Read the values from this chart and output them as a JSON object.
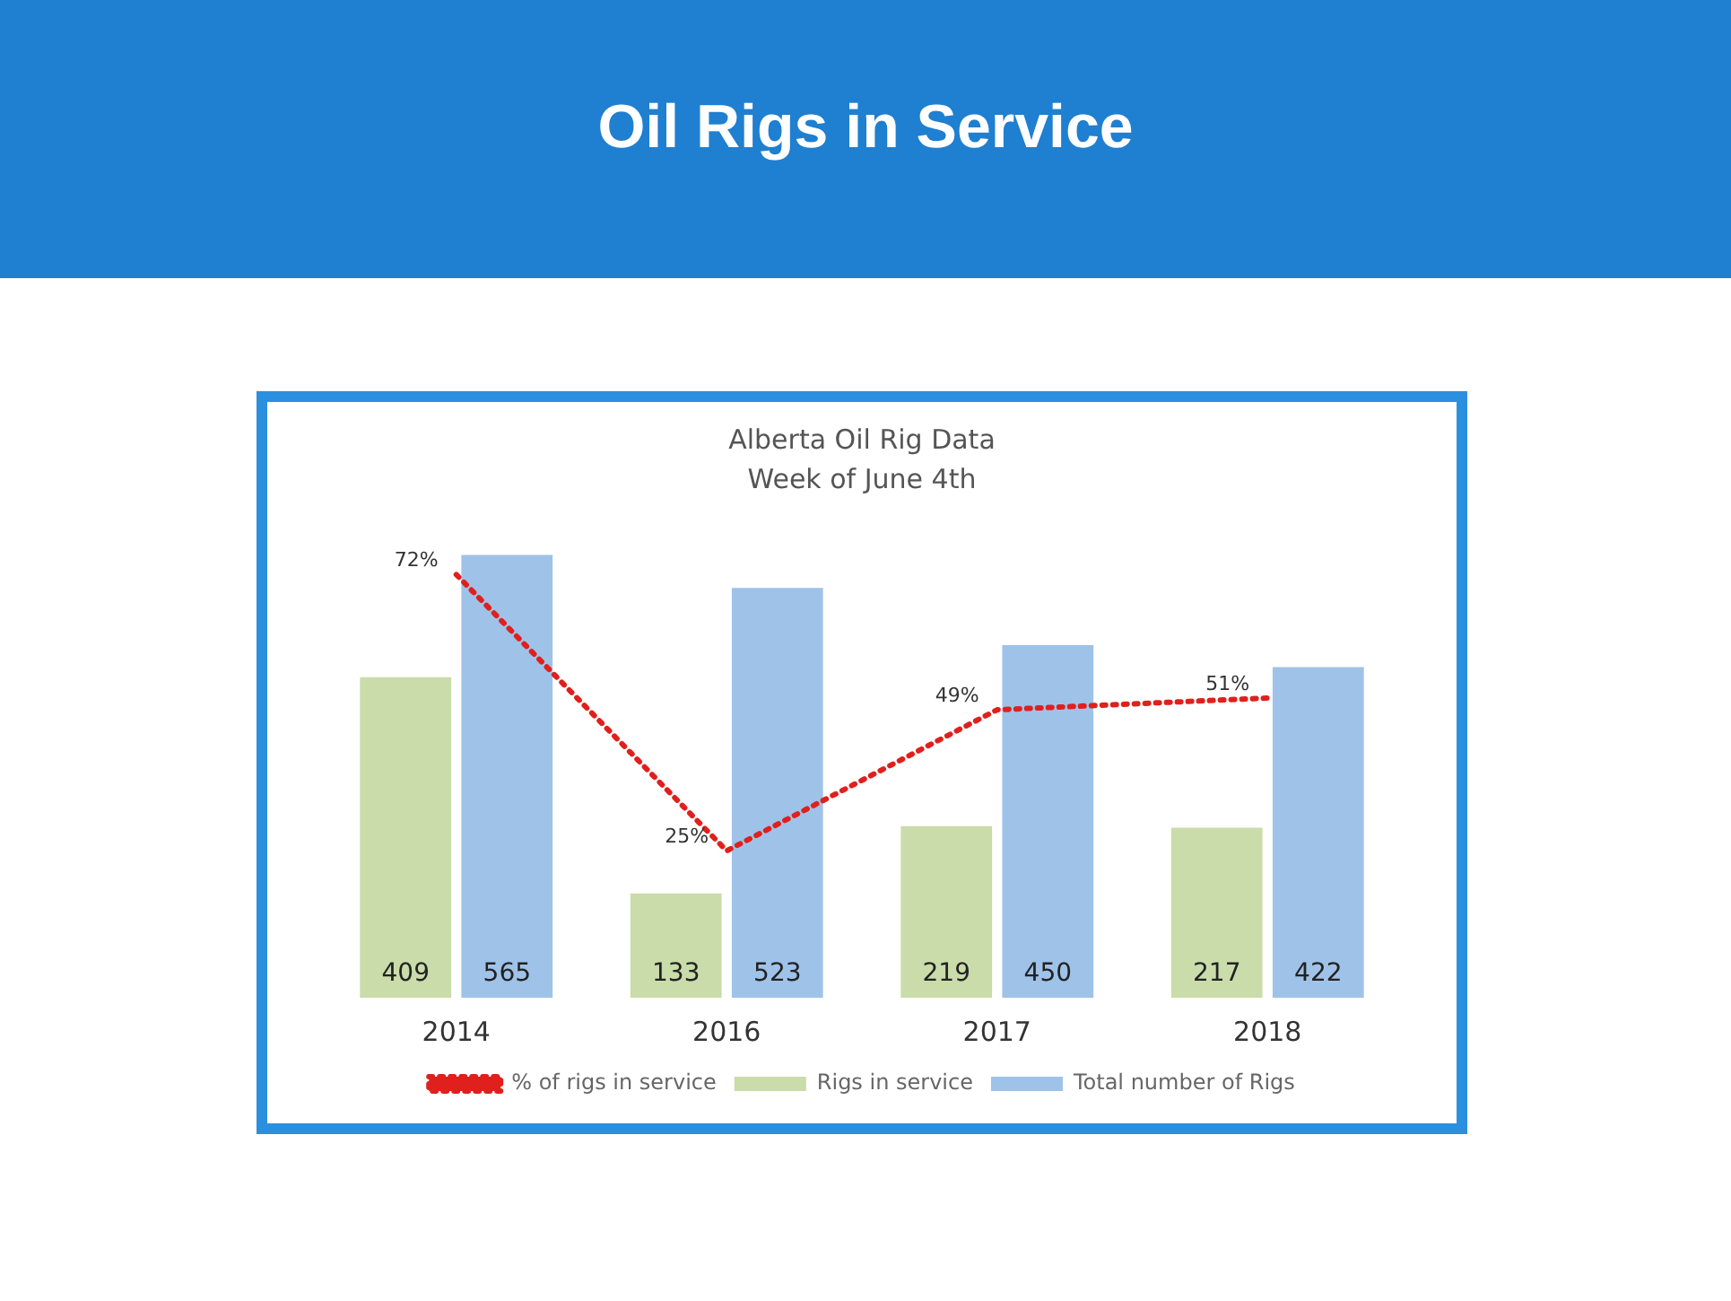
{
  "chart_data": {
    "type": "bar",
    "title": "Oil Rigs in Service",
    "subtitle": "Alberta Oil Rig Data\nWeek of June 4th",
    "categories": [
      "2014",
      "2016",
      "2017",
      "2018"
    ],
    "series": [
      {
        "name": "Rigs in service",
        "color": "#c9dcaa",
        "values": [
          409,
          133,
          219,
          217
        ],
        "value_labels": [
          "409",
          "133",
          "219",
          "217"
        ]
      },
      {
        "name": "Total number of Rigs",
        "color": "#9fc2e8",
        "values": [
          565,
          523,
          450,
          422
        ],
        "value_labels": [
          "565",
          "523",
          "450",
          "422"
        ]
      },
      {
        "name": "% of rigs in service",
        "type": "line",
        "axis": "y2",
        "color": "#e0201c",
        "line_style": "dotted",
        "marker": "none",
        "values": [
          72,
          25,
          49,
          51
        ],
        "value_labels": [
          "72%",
          "25%",
          "49%",
          "51%"
        ]
      }
    ],
    "legend": "bottom",
    "grid": false,
    "tick_labels": "x"
  }
}
